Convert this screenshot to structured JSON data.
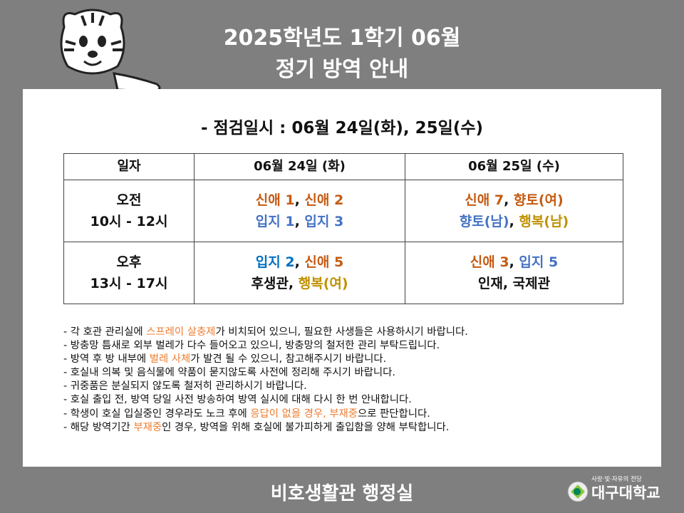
{
  "header": {
    "title_line1": "2025학년도 1학기 06월",
    "title_line2": "정기 방역 안내"
  },
  "inspection_date": "- 점검일시 :  06월 24일(화), 25일(수)",
  "colors": {
    "orange": "#c55a11",
    "blue": "#4472c4",
    "blue2": "#0070c0",
    "gold": "#bf9000",
    "black": "#111111",
    "note_highlight": "#ed7d31"
  },
  "table": {
    "headers": [
      "일자",
      "06월 24일 (화)",
      "06월 25일 (수)"
    ],
    "rows": [
      {
        "time": [
          "오전",
          "10시 - 12시"
        ],
        "cells": [
          [
            [
              {
                "t": "신애 1",
                "c": "orange"
              },
              {
                "t": ", ",
                "c": "black"
              },
              {
                "t": "신애 2",
                "c": "orange"
              }
            ],
            [
              {
                "t": "입지 1",
                "c": "blue"
              },
              {
                "t": ", ",
                "c": "black"
              },
              {
                "t": "입지 3",
                "c": "blue"
              }
            ]
          ],
          [
            [
              {
                "t": "신애 7",
                "c": "orange"
              },
              {
                "t": ", ",
                "c": "black"
              },
              {
                "t": "향토(여)",
                "c": "orange"
              }
            ],
            [
              {
                "t": "향토(남)",
                "c": "blue"
              },
              {
                "t": ", ",
                "c": "black"
              },
              {
                "t": "행복(남)",
                "c": "gold"
              }
            ]
          ]
        ]
      },
      {
        "time": [
          "오후",
          "13시 - 17시"
        ],
        "cells": [
          [
            [
              {
                "t": "입지 2",
                "c": "blue2"
              },
              {
                "t": ", ",
                "c": "black"
              },
              {
                "t": "신애 5",
                "c": "orange"
              }
            ],
            [
              {
                "t": "후생관",
                "c": "black"
              },
              {
                "t": ", ",
                "c": "black"
              },
              {
                "t": "행복(여)",
                "c": "gold"
              }
            ]
          ],
          [
            [
              {
                "t": "신애 3",
                "c": "orange"
              },
              {
                "t": ", ",
                "c": "black"
              },
              {
                "t": "입지 5",
                "c": "blue"
              }
            ],
            [
              {
                "t": "인재, 국제관",
                "c": "black"
              }
            ]
          ]
        ]
      }
    ]
  },
  "notes": [
    [
      {
        "t": "- 각 호관 관리실에 "
      },
      {
        "t": "스프레이 살충제",
        "h": true
      },
      {
        "t": "가 비치되어 있으니, 필요한 사생들은 사용하시기 바랍니다."
      }
    ],
    [
      {
        "t": "- 방충망 틈새로 외부 벌레가 다수 들어오고 있으니, 방충망의 철저한 관리 부탁드립니다."
      }
    ],
    [
      {
        "t": "- 방역 후 방 내부에 "
      },
      {
        "t": "벌레 사체",
        "h": true
      },
      {
        "t": "가 발견 될 수 있으니, 참고해주시기 바랍니다."
      }
    ],
    [
      {
        "t": "- 호실내 의복 및 음식물에 약품이 묻지않도록 사전에 정리해 주시기 바랍니다."
      }
    ],
    [
      {
        "t": "- 귀중품은 분실되지 않도록 철저히 관리하시기 바랍니다."
      }
    ],
    [
      {
        "t": "- 호실 출입 전, 방역 당일 사전 방송하여 방역 실시에 대해 다시 한 번 안내합니다."
      }
    ],
    [
      {
        "t": "- 학생이 호실 입실중인 경우라도 노크 후에 "
      },
      {
        "t": "응답이 없을 경우, 부재중",
        "h": true
      },
      {
        "t": "으로 판단합니다."
      }
    ],
    [
      {
        "t": "- 해당 방역기간 "
      },
      {
        "t": "부재중",
        "h": true
      },
      {
        "t": "인 경우, 방역을 위해 호실에 불가피하게 출입함을 양해 부탁합니다."
      }
    ]
  ],
  "footer": {
    "office": "비호생활관 행정실",
    "logo_slogan": "사랑·빛·자유의 전당",
    "logo_name": "대구대학교"
  }
}
